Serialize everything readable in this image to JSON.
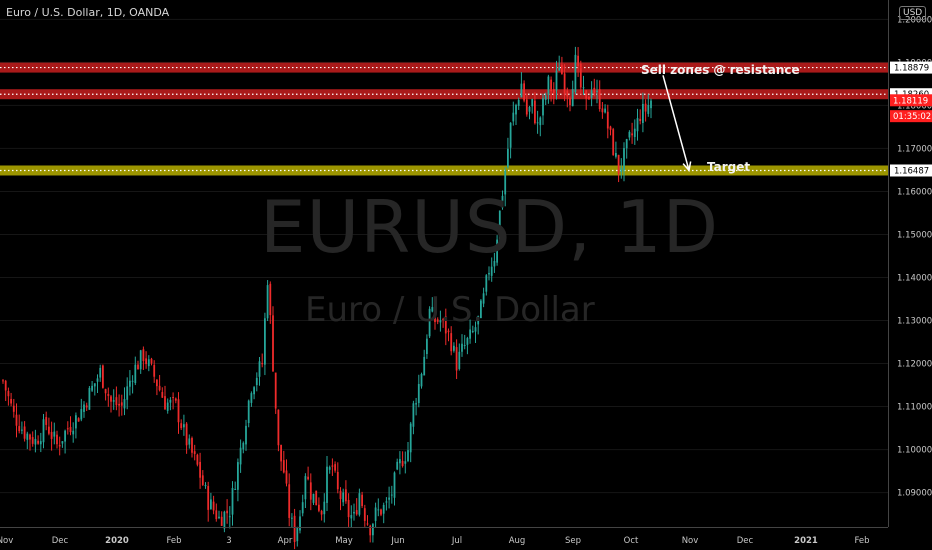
{
  "header": {
    "title": "Euro / U.S. Dollar, 1D, OANDA",
    "currency": "USD"
  },
  "watermark": {
    "line1": "EURUSD, 1D",
    "line2": "Euro / U.S. Dollar"
  },
  "annotations": {
    "sell": "Sell zones @ resistance",
    "target": "Target"
  },
  "colors": {
    "background": "#000000",
    "up": "#26a69a",
    "down": "#ef2b2b",
    "resistance_zone": "#b71c1c",
    "target_zone": "#a9a200",
    "arrow": "#ffffff",
    "grid": "#161616"
  },
  "chart_data": {
    "type": "candlestick",
    "symbol": "EURUSD",
    "timeframe": "1D",
    "ylim": [
      1.082,
      1.2045
    ],
    "y_ticks": [
      1.09,
      1.1,
      1.11,
      1.12,
      1.13,
      1.14,
      1.15,
      1.16,
      1.17,
      1.18,
      1.19,
      1.2
    ],
    "y_tick_labels": [
      "1.09000",
      "1.10000",
      "1.11000",
      "1.12000",
      "1.13000",
      "1.14000",
      "1.15000",
      "1.16000",
      "1.17000",
      "1.18000",
      "1.19000",
      "1.20000"
    ],
    "x_ticks": [
      "Nov",
      "Dec",
      "2020",
      "Feb",
      "3",
      "Apr",
      "May",
      "Jun",
      "Jul",
      "Aug",
      "Sep",
      "Oct",
      "Nov",
      "Dec",
      "2021",
      "Feb"
    ],
    "close_path": [
      [
        0,
        1.116
      ],
      [
        4,
        1.108
      ],
      [
        8,
        1.104
      ],
      [
        12,
        1.102
      ],
      [
        16,
        1.106
      ],
      [
        20,
        1.101
      ],
      [
        24,
        1.105
      ],
      [
        28,
        1.108
      ],
      [
        32,
        1.113
      ],
      [
        36,
        1.118
      ],
      [
        40,
        1.111
      ],
      [
        44,
        1.11
      ],
      [
        48,
        1.118
      ],
      [
        52,
        1.122
      ],
      [
        56,
        1.117
      ],
      [
        60,
        1.111
      ],
      [
        64,
        1.11
      ],
      [
        68,
        1.102
      ],
      [
        72,
        1.096
      ],
      [
        76,
        1.088
      ],
      [
        80,
        1.084
      ],
      [
        84,
        1.086
      ],
      [
        88,
        1.1
      ],
      [
        92,
        1.115
      ],
      [
        96,
        1.12
      ],
      [
        98,
        1.14
      ],
      [
        100,
        1.12
      ],
      [
        102,
        1.1
      ],
      [
        104,
        1.095
      ],
      [
        106,
        1.085
      ],
      [
        108,
        1.08
      ],
      [
        110,
        1.085
      ],
      [
        112,
        1.095
      ],
      [
        114,
        1.09
      ],
      [
        116,
        1.088
      ],
      [
        118,
        1.086
      ],
      [
        120,
        1.094
      ],
      [
        122,
        1.096
      ],
      [
        124,
        1.09
      ],
      [
        126,
        1.088
      ],
      [
        128,
        1.085
      ],
      [
        130,
        1.084
      ],
      [
        132,
        1.09
      ],
      [
        134,
        1.085
      ],
      [
        136,
        1.082
      ],
      [
        138,
        1.085
      ],
      [
        140,
        1.086
      ],
      [
        142,
        1.087
      ],
      [
        144,
        1.09
      ],
      [
        146,
        1.095
      ],
      [
        148,
        1.098
      ],
      [
        150,
        1.1
      ],
      [
        152,
        1.11
      ],
      [
        154,
        1.115
      ],
      [
        156,
        1.122
      ],
      [
        158,
        1.132
      ],
      [
        160,
        1.13
      ],
      [
        162,
        1.13
      ],
      [
        164,
        1.128
      ],
      [
        166,
        1.125
      ],
      [
        168,
        1.12
      ],
      [
        170,
        1.123
      ],
      [
        172,
        1.125
      ],
      [
        174,
        1.127
      ],
      [
        176,
        1.13
      ],
      [
        178,
        1.135
      ],
      [
        180,
        1.142
      ],
      [
        182,
        1.145
      ],
      [
        184,
        1.155
      ],
      [
        186,
        1.165
      ],
      [
        188,
        1.175
      ],
      [
        190,
        1.18
      ],
      [
        192,
        1.185
      ],
      [
        194,
        1.178
      ],
      [
        196,
        1.18
      ],
      [
        198,
        1.175
      ],
      [
        200,
        1.18
      ],
      [
        202,
        1.185
      ],
      [
        204,
        1.183
      ],
      [
        206,
        1.19
      ],
      [
        208,
        1.185
      ],
      [
        210,
        1.182
      ],
      [
        212,
        1.19
      ],
      [
        214,
        1.184
      ],
      [
        216,
        1.18
      ],
      [
        218,
        1.185
      ],
      [
        220,
        1.182
      ],
      [
        222,
        1.18
      ],
      [
        224,
        1.175
      ],
      [
        226,
        1.17
      ],
      [
        228,
        1.165
      ],
      [
        230,
        1.168
      ],
      [
        232,
        1.172
      ],
      [
        234,
        1.174
      ],
      [
        236,
        1.178
      ],
      [
        238,
        1.179
      ],
      [
        240,
        1.1812
      ]
    ],
    "levels": [
      {
        "label": "1.18879",
        "value": 1.18879,
        "zone": "resistance"
      },
      {
        "label": "1.18260",
        "value": 1.1826,
        "zone": "resistance"
      },
      {
        "label": "1.16487",
        "value": 1.16487,
        "zone": "target"
      }
    ],
    "price_tags": [
      {
        "label": "1.18119",
        "value": 1.18119
      },
      {
        "label": "01:35:02",
        "value": 1.1775
      }
    ],
    "forecast_arrow": {
      "from": [
        240,
        1.187
      ],
      "to": [
        250,
        1.1649
      ]
    }
  }
}
